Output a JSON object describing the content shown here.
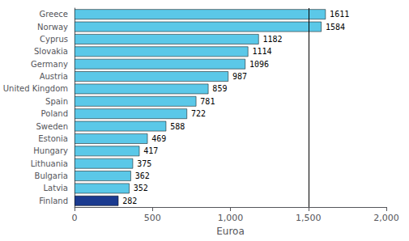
{
  "chart_data": {
    "type": "bar",
    "orientation": "horizontal",
    "categories": [
      "Greece",
      "Norway",
      "Cyprus",
      "Slovakia",
      "Germany",
      "Austria",
      "United Kingdom",
      "Spain",
      "Poland",
      "Sweden",
      "Estonia",
      "Hungary",
      "Lithuania",
      "Bulgaria",
      "Latvia",
      "Finland"
    ],
    "values": [
      1611,
      1584,
      1182,
      1114,
      1096,
      987,
      859,
      781,
      722,
      588,
      469,
      417,
      375,
      362,
      352,
      282
    ],
    "colors": [
      "#5BC8E8",
      "#5BC8E8",
      "#5BC8E8",
      "#5BC8E8",
      "#5BC8E8",
      "#5BC8E8",
      "#5BC8E8",
      "#5BC8E8",
      "#5BC8E8",
      "#5BC8E8",
      "#5BC8E8",
      "#5BC8E8",
      "#5BC8E8",
      "#5BC8E8",
      "#5BC8E8",
      "#1A3A8F"
    ],
    "xlabel": "Euroa",
    "xlim": [
      0,
      2000
    ],
    "xticks": [
      0,
      500,
      1000,
      1500,
      2000
    ],
    "vline": {
      "x": 1500,
      "color": "#000000"
    },
    "data_labels": true,
    "grid": false
  }
}
